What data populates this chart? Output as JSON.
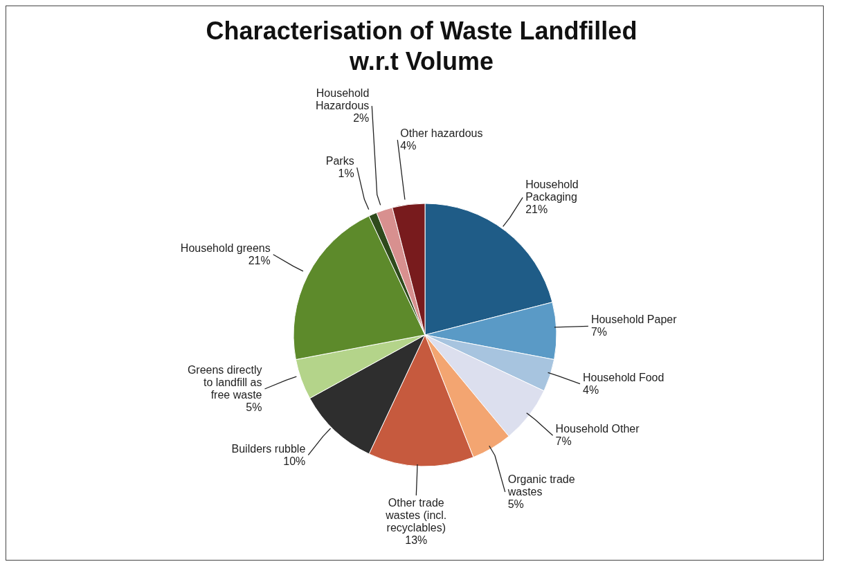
{
  "chart_data": {
    "type": "pie",
    "title": "Characterisation of Waste Landfilled w.r.t Volume",
    "categories": [
      "Household Packaging",
      "Household Paper",
      "Household Food",
      "Household Other",
      "Organic trade wastes",
      "Other trade wastes (incl. recyclables)",
      "Builders rubble",
      "Greens directly to landfill as free waste",
      "Household greens",
      "Parks",
      "Household Hazardous",
      "Other hazardous"
    ],
    "values": [
      21,
      7,
      4,
      7,
      5,
      13,
      10,
      5,
      21,
      1,
      2,
      4
    ],
    "value_labels": [
      "21%",
      "7%",
      "4%",
      "7%",
      "5%",
      "13%",
      "10%",
      "5%",
      "21%",
      "1%",
      "2%",
      "4%"
    ],
    "colors": [
      "#1f5c87",
      "#5a9ac6",
      "#a7c4df",
      "#dcdfee",
      "#f3a571",
      "#c65a3e",
      "#2e2e2e",
      "#b4d48a",
      "#5d8a2b",
      "#2f4a1c",
      "#d8908f",
      "#781b1d"
    ]
  }
}
